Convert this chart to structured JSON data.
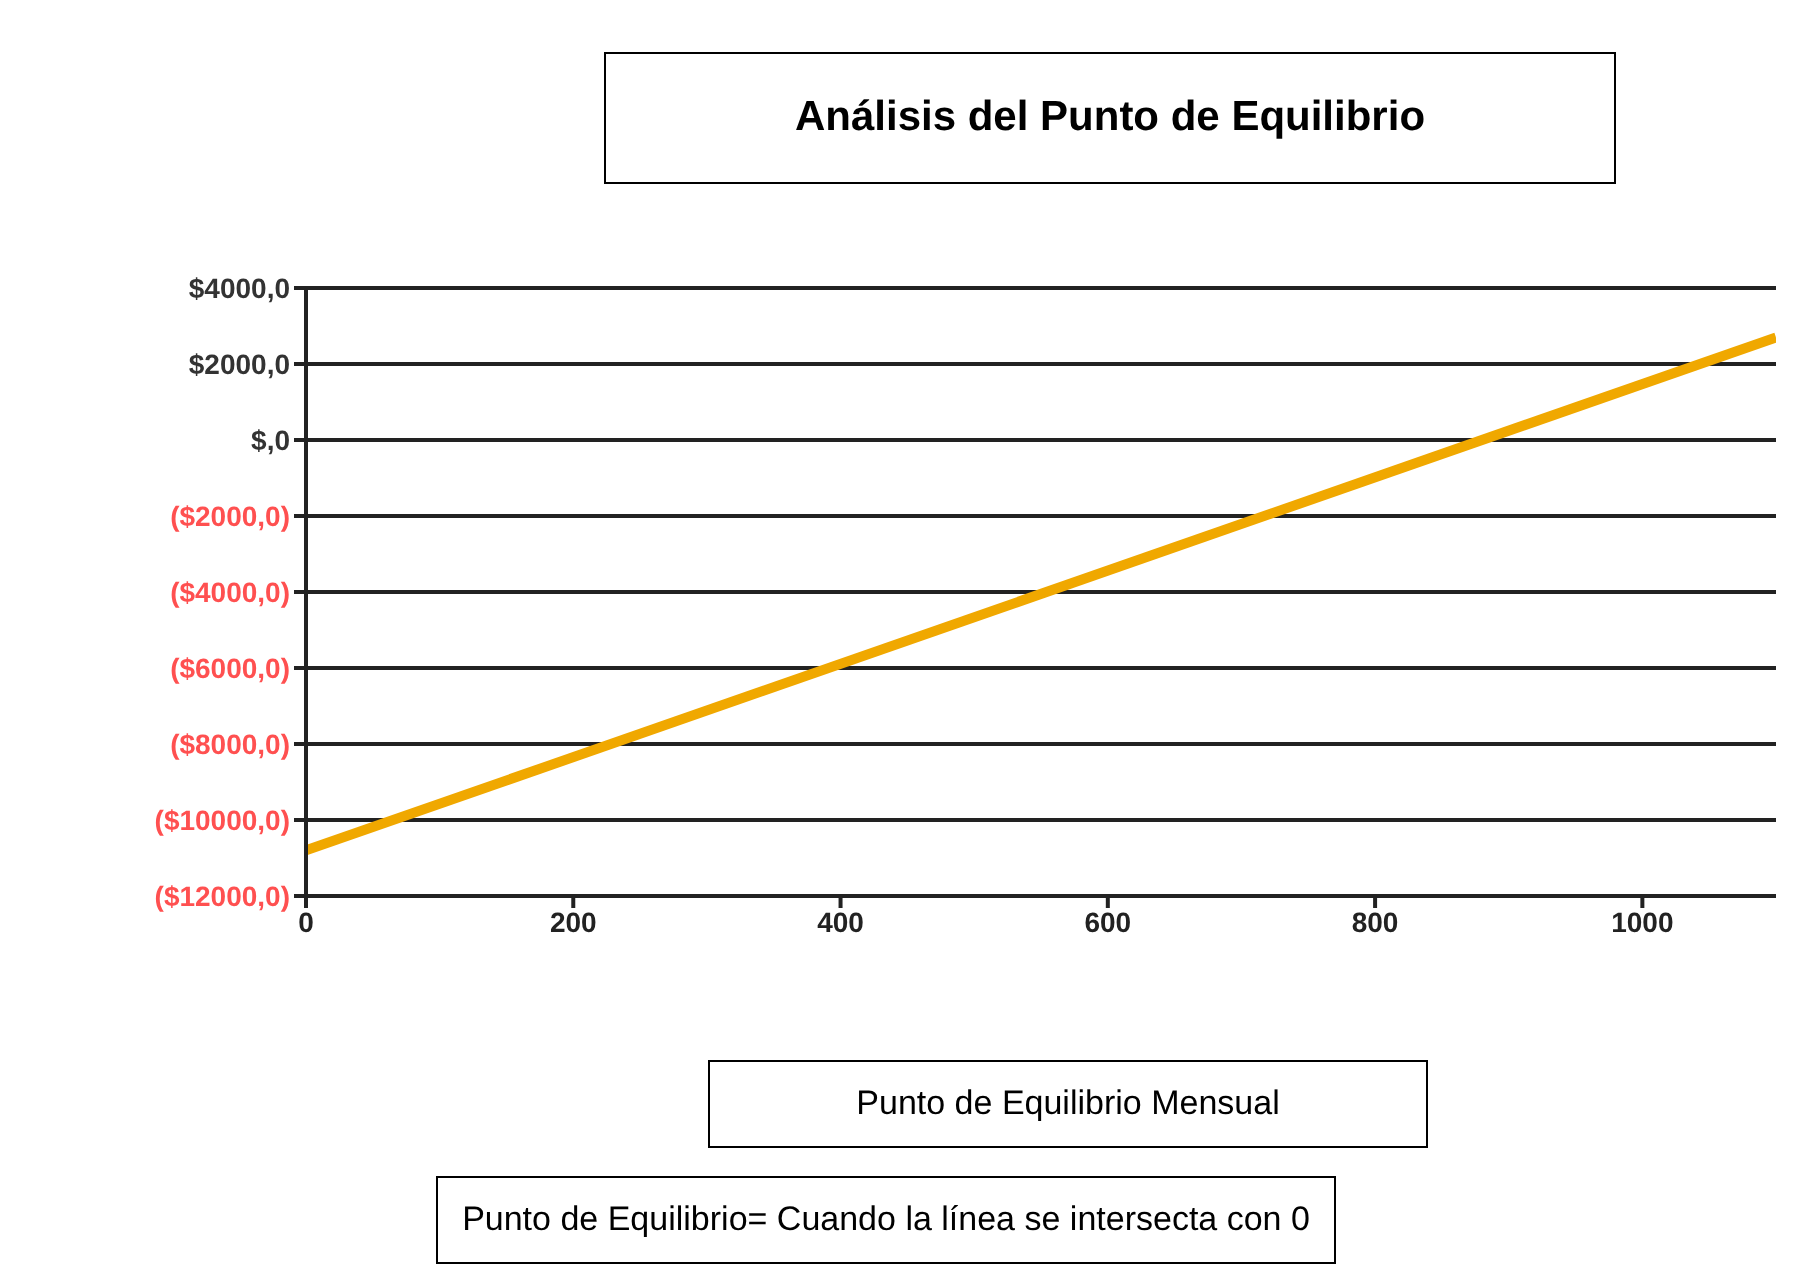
{
  "chart_data": {
    "type": "line",
    "title": "Análisis del Punto de Equilibrio",
    "xlabel": "Punto de Equilibrio Mensual",
    "annotations": [
      "Punto de Equilibrio= Cuando la línea se intersecta con 0"
    ],
    "x": [
      0,
      1100
    ],
    "series": [
      {
        "color": "#f0a800",
        "values": [
          -10800,
          2700
        ]
      }
    ],
    "xlim": [
      0,
      1100
    ],
    "xticks": [
      0,
      200,
      400,
      600,
      800,
      1000
    ],
    "ylim": [
      -12000,
      4000
    ],
    "yticks": [
      {
        "value": -12000,
        "label": "($12000,0)"
      },
      {
        "value": -10000,
        "label": "($10000,0)"
      },
      {
        "value": -8000,
        "label": "($8000,0)"
      },
      {
        "value": -6000,
        "label": "($6000,0)"
      },
      {
        "value": -4000,
        "label": "($4000,0)"
      },
      {
        "value": -2000,
        "label": "($2000,0)"
      },
      {
        "value": 0,
        "label": "$,0"
      },
      {
        "value": 2000,
        "label": "$2000,0"
      },
      {
        "value": 4000,
        "label": "$4000,0"
      }
    ],
    "grid": "y",
    "marker": "none",
    "line_style": "solid"
  }
}
